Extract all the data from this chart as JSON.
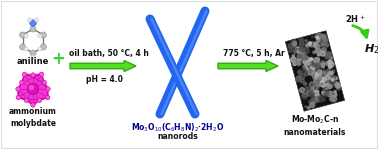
{
  "bg_color": "#ffffff",
  "arrow1_label_top": "oil bath, 50 °C, 4 h",
  "arrow1_label_bot": "pH = 4.0",
  "arrow2_label": "775 °C, 5 h, Ar",
  "label_aniline": "aniline",
  "label_ammonium": "ammonium\nmolybdate",
  "label_nanorods_formula": "Mo$_3$O$_{10}$(C$_6$H$_8$N)$_2$·2H$_2$O",
  "label_nanorods": "nanorods",
  "label_product": "Mo-Mo$_2$C-n\nnanomaterials",
  "label_2Hplus": "2H$^+$",
  "label_H2": "H$_2$",
  "plus_color": "#44cc44",
  "arrow_color": "#55dd22",
  "nanorod_color": "#2266ee",
  "nanorod_highlight": "#6699ff",
  "text_color": "#111111",
  "formula_color": "#000088",
  "mol_gray": "#aaaaaa",
  "mol_blue": "#4477ff",
  "mol_white": "#eeeeee",
  "amm_magenta": "#ee22cc",
  "amm_edge": "#cc00aa",
  "amm_dot": "#ff88dd"
}
